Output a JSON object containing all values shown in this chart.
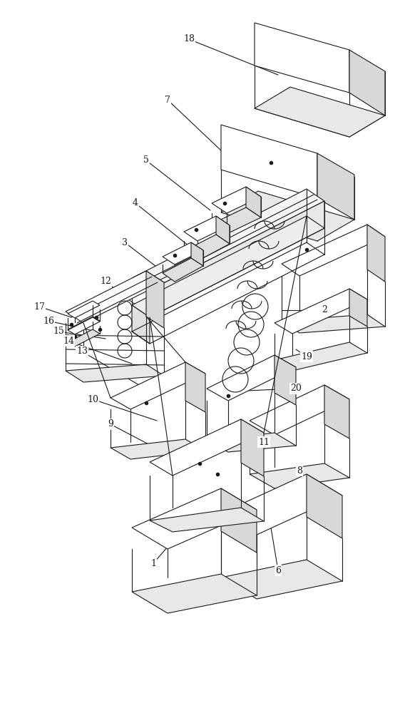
{
  "bg_color": "#ffffff",
  "line_color": "#1a1a1a",
  "figsize": [
    5.54,
    10.0
  ],
  "dpi": 100,
  "lw": 0.8,
  "font_size": 9,
  "labels_and_leaders": [
    [
      "18",
      265,
      55,
      390,
      105
    ],
    [
      "7",
      235,
      140,
      330,
      230
    ],
    [
      "5",
      205,
      225,
      295,
      295
    ],
    [
      "4",
      190,
      285,
      265,
      345
    ],
    [
      "3",
      175,
      340,
      240,
      390
    ],
    [
      "12",
      148,
      395,
      200,
      435
    ],
    [
      "17",
      55,
      430,
      100,
      445
    ],
    [
      "16",
      68,
      450,
      135,
      465
    ],
    [
      "15",
      82,
      465,
      148,
      475
    ],
    [
      "14",
      96,
      478,
      185,
      510
    ],
    [
      "13",
      115,
      493,
      195,
      540
    ],
    [
      "10",
      130,
      560,
      220,
      590
    ],
    [
      "9",
      155,
      595,
      250,
      645
    ],
    [
      "1",
      215,
      790,
      250,
      750
    ],
    [
      "6",
      390,
      800,
      380,
      740
    ],
    [
      "8",
      420,
      660,
      415,
      680
    ],
    [
      "11",
      370,
      620,
      345,
      605
    ],
    [
      "20",
      415,
      545,
      345,
      548
    ],
    [
      "19",
      430,
      500,
      415,
      490
    ],
    [
      "2",
      455,
      435,
      395,
      435
    ]
  ]
}
